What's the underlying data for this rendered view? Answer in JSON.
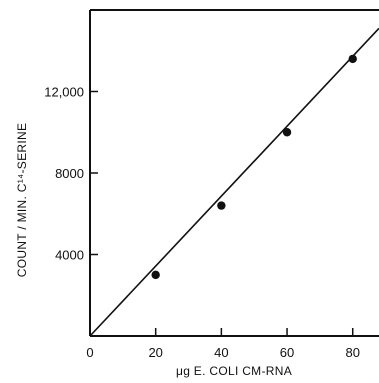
{
  "chart_data": {
    "type": "scatter",
    "xlabel": "μg E. COLI CM-RNA",
    "ylabel": "COUNT / MIN. C¹⁴-SERINE",
    "xlim": [
      0,
      88
    ],
    "ylim": [
      0,
      16000
    ],
    "x_ticks": [
      0,
      20,
      40,
      60,
      80
    ],
    "x_tick_labels": [
      "0",
      "20",
      "40",
      "60",
      "80"
    ],
    "y_ticks": [
      0,
      4000,
      8000,
      12000
    ],
    "y_tick_labels": [
      "",
      "4000",
      "8000",
      "12,000"
    ],
    "grid": false,
    "series": [
      {
        "x": [
          20,
          40,
          60,
          80
        ],
        "y": [
          3000,
          6400,
          10000,
          13600
        ]
      }
    ],
    "fit_line": {
      "x": [
        0,
        88
      ],
      "y": [
        0,
        15100
      ]
    },
    "colors": {
      "ink": "#111111",
      "background": "#ffffff"
    }
  }
}
